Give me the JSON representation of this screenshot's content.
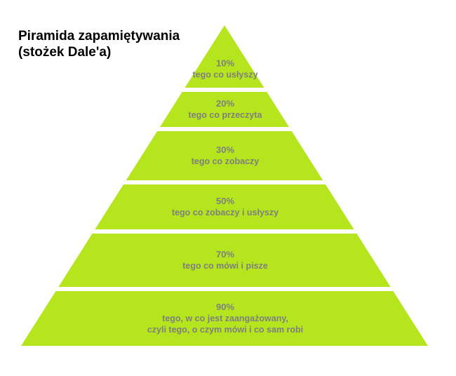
{
  "title": {
    "line1": "Piramida zapamiętywania",
    "line2": "(stożek Dale'a)"
  },
  "colors": {
    "layer_fill": "#b5e61d",
    "separator": "#ffffff",
    "text": "#7f7f7f",
    "title": "#000000"
  },
  "layers": [
    {
      "percent": "10%",
      "lines": [
        "tego co usłyszy"
      ]
    },
    {
      "percent": "20%",
      "lines": [
        "tego co przeczyta"
      ]
    },
    {
      "percent": "30%",
      "lines": [
        "tego co zobaczy"
      ]
    },
    {
      "percent": "50%",
      "lines": [
        "tego co zobaczy i usłyszy"
      ]
    },
    {
      "percent": "70%",
      "lines": [
        "tego co mówi i pisze"
      ]
    },
    {
      "percent": "90%",
      "lines": [
        "tego, w co jest zaangażowany,",
        "czyli tego, o czym mówi i co sam robi"
      ]
    }
  ]
}
